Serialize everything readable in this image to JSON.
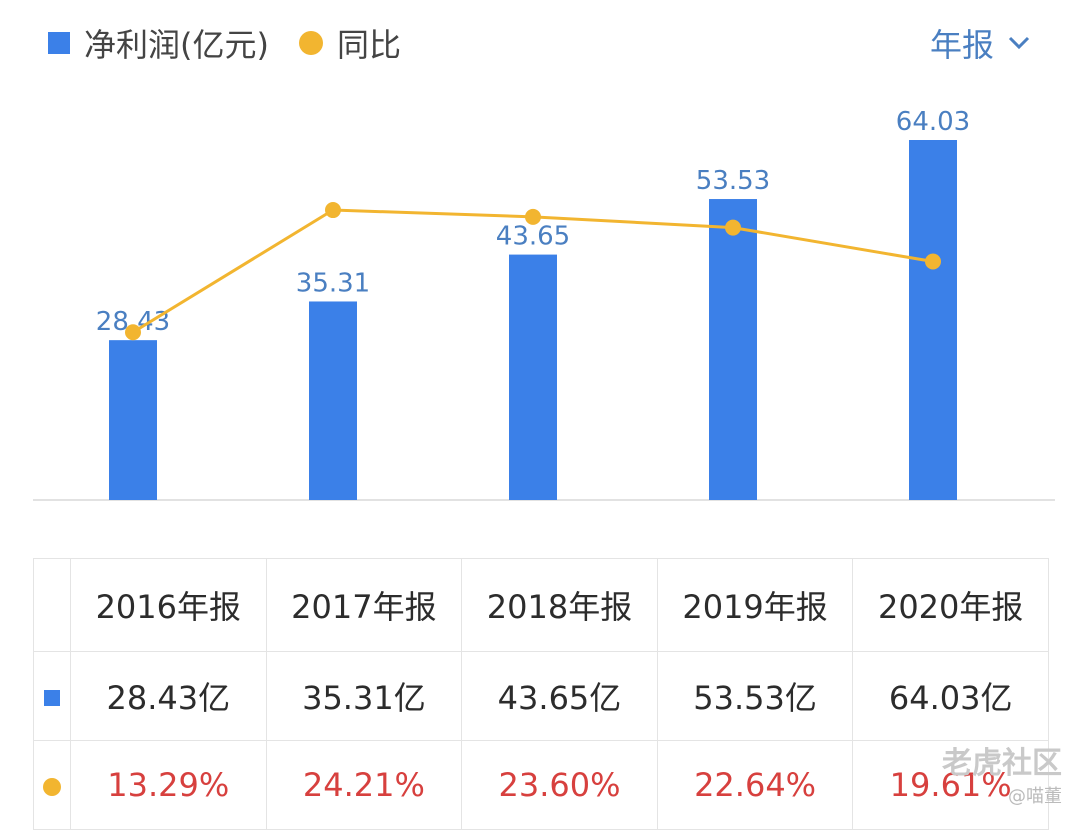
{
  "colors": {
    "bar": "#3b80e8",
    "line": "#f2b530",
    "value_label": "#4a7fc1",
    "pct": "#d7403e",
    "grid": "#e2e2e2"
  },
  "legend": {
    "series1": "净利润(亿元)",
    "series2": "同比"
  },
  "period": {
    "label": "年报",
    "icon": "chevron-down-icon"
  },
  "chart_data": {
    "type": "bar",
    "categories": [
      "2016年报",
      "2017年报",
      "2018年报",
      "2019年报",
      "2020年报"
    ],
    "series": [
      {
        "name": "净利润(亿元)",
        "type": "bar",
        "values": [
          28.43,
          35.31,
          43.65,
          53.53,
          64.03
        ],
        "labels": [
          "28.43",
          "35.31",
          "43.65",
          "53.53",
          "64.03"
        ]
      },
      {
        "name": "同比",
        "type": "line",
        "values": [
          13.29,
          24.21,
          23.6,
          22.64,
          19.61
        ]
      }
    ],
    "bar_ylim": [
      0,
      64.03
    ],
    "line_ylim": [
      5,
      26
    ]
  },
  "table": {
    "headers": [
      "2016年报",
      "2017年报",
      "2018年报",
      "2019年报",
      "2020年报"
    ],
    "profit_row": [
      "28.43亿",
      "35.31亿",
      "43.65亿",
      "53.53亿",
      "64.03亿"
    ],
    "yoy_row": [
      "13.29%",
      "24.21%",
      "23.60%",
      "22.64%",
      "19.61%"
    ]
  },
  "watermark": {
    "main": "老虎社区",
    "sub": "@喵董"
  }
}
